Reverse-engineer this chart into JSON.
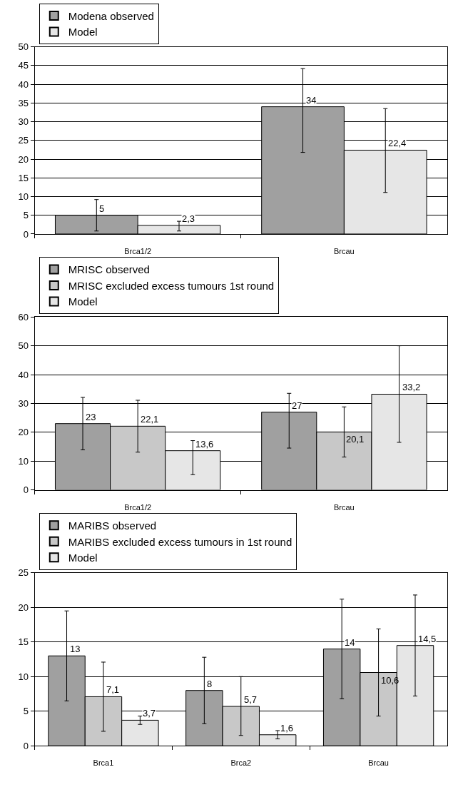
{
  "chart_data": [
    {
      "type": "bar",
      "categories": [
        "Brca1/2",
        "Brcau"
      ],
      "ylim": [
        0,
        50
      ],
      "yticks": [
        0,
        5,
        10,
        15,
        20,
        25,
        30,
        35,
        40,
        45,
        50
      ],
      "grid": "y",
      "legend": "top left",
      "series": [
        {
          "name": "Modena observed",
          "color": "#a0a0a0",
          "values": [
            5,
            34
          ],
          "value_labels": [
            "5",
            "34"
          ],
          "errors": [
            [
              0.8,
              9.2
            ],
            [
              21.8,
              44.2
            ]
          ]
        },
        {
          "name": "Model",
          "color": "#e6e6e6",
          "values": [
            2.3,
            22.4
          ],
          "value_labels": [
            "2,3",
            "22,4"
          ],
          "errors": [
            [
              0.8,
              3.4
            ],
            [
              11.1,
              33.5
            ]
          ]
        }
      ]
    },
    {
      "type": "bar",
      "categories": [
        "Brca1/2",
        "Brcau"
      ],
      "ylim": [
        0,
        60
      ],
      "yticks": [
        0,
        10,
        20,
        30,
        40,
        50,
        60
      ],
      "grid": "y",
      "legend": "top left",
      "series": [
        {
          "name": "MRISC observed",
          "color": "#a0a0a0",
          "values": [
            23,
            27
          ],
          "value_labels": [
            "23",
            "27"
          ],
          "errors": [
            [
              13.9,
              32.1
            ],
            [
              14.5,
              33.5
            ]
          ]
        },
        {
          "name": "MRISC excluded excess tumours 1st round",
          "color": "#c8c8c8",
          "values": [
            22.1,
            20.1
          ],
          "value_labels": [
            "22,1",
            "20,1"
          ],
          "errors": [
            [
              13.1,
              31.1
            ],
            [
              11.4,
              28.8
            ]
          ]
        },
        {
          "name": "Model",
          "color": "#e6e6e6",
          "values": [
            13.6,
            33.2
          ],
          "value_labels": [
            "13,6",
            "33,2"
          ],
          "errors": [
            [
              5.3,
              17.1
            ],
            [
              16.5,
              50
            ]
          ]
        }
      ]
    },
    {
      "type": "bar",
      "categories": [
        "Brca1",
        "Brca2",
        "Brcau"
      ],
      "ylim": [
        0,
        25
      ],
      "yticks": [
        0,
        5,
        10,
        15,
        20,
        25
      ],
      "grid": "y",
      "legend": "top left",
      "series": [
        {
          "name": "MARIBS observed",
          "color": "#a0a0a0",
          "values": [
            13,
            8,
            14
          ],
          "value_labels": [
            "13",
            "8",
            "14"
          ],
          "errors": [
            [
              6.5,
              19.5
            ],
            [
              3.2,
              12.8
            ],
            [
              6.8,
              21.2
            ]
          ]
        },
        {
          "name": "MARIBS excluded excess tumours in 1st round",
          "color": "#c8c8c8",
          "values": [
            7.1,
            5.7,
            10.6
          ],
          "value_labels": [
            "7,1",
            "5,7",
            "10,6"
          ],
          "errors": [
            [
              2.1,
              12.1
            ],
            [
              1.5,
              10
            ],
            [
              4.3,
              16.9
            ]
          ]
        },
        {
          "name": "Model",
          "color": "#e6e6e6",
          "values": [
            3.7,
            1.6,
            14.5
          ],
          "value_labels": [
            "3,7",
            "1,6",
            "14,5"
          ],
          "errors": [
            [
              3.1,
              4.3
            ],
            [
              1.0,
              2.2
            ],
            [
              7.2,
              21.8
            ]
          ]
        }
      ]
    }
  ]
}
